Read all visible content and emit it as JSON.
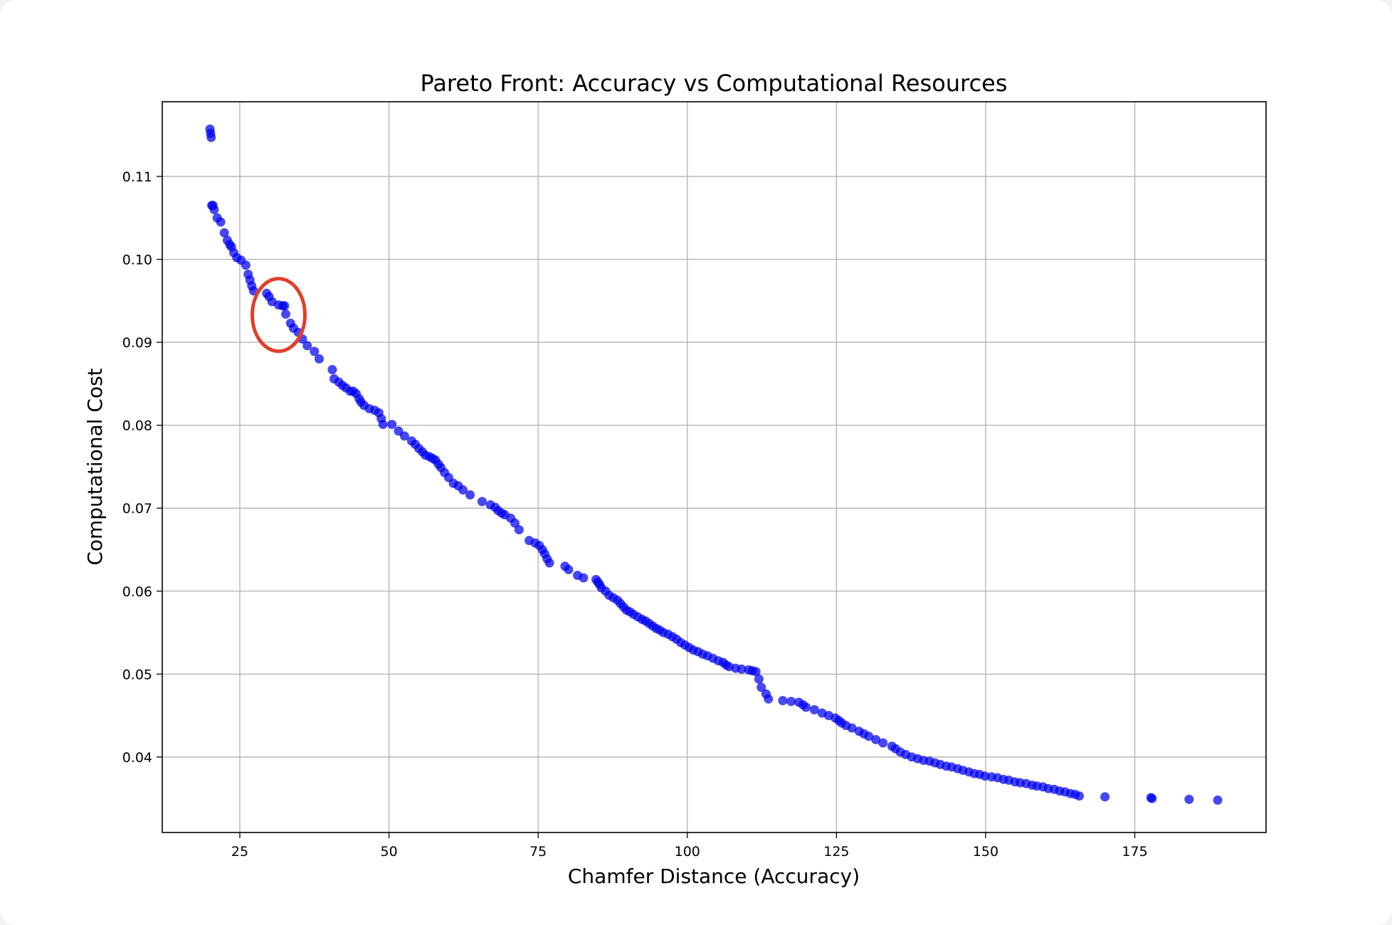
{
  "chart_data": {
    "type": "scatter",
    "title": "Pareto Front: Accuracy vs Computational Resources",
    "xlabel": "Chamfer Distance (Accuracy)",
    "ylabel": "Computational Cost",
    "xlim": [
      12,
      197
    ],
    "ylim": [
      0.0309,
      0.119
    ],
    "xticks": [
      25,
      50,
      75,
      100,
      125,
      150,
      175
    ],
    "yticks": [
      0.04,
      0.05,
      0.06,
      0.07,
      0.08,
      0.09,
      0.1,
      0.11
    ],
    "xtick_labels": [
      "25",
      "50",
      "75",
      "100",
      "125",
      "150",
      "175"
    ],
    "ytick_labels": [
      "0.04",
      "0.05",
      "0.06",
      "0.07",
      "0.08",
      "0.09",
      "0.10",
      "0.11"
    ],
    "grid": true,
    "marker_color": "#0000ee",
    "series": [
      {
        "x": [
          20.0,
          20.1,
          20.2,
          20.3,
          20.5,
          20.7,
          21.2,
          21.8,
          22.4,
          22.9,
          23.3,
          23.6,
          24.0,
          24.5,
          25.2,
          26.0,
          26.4,
          26.7,
          27.0,
          27.3,
          29.5,
          29.9,
          30.4,
          31.5,
          32.2,
          32.5,
          32.7,
          33.5,
          34.0,
          34.8,
          35.5,
          36.3,
          37.5,
          38.3,
          40.5,
          40.8,
          41.6,
          42.2,
          42.8,
          43.5,
          44.0,
          44.5,
          45.0,
          45.3,
          45.8,
          46.7,
          47.6,
          48.3,
          48.7,
          49.0,
          50.5,
          51.6,
          52.6,
          53.8,
          54.4,
          55.0,
          55.6,
          56.1,
          56.8,
          57.3,
          57.8,
          58.3,
          58.7,
          59.3,
          60.0,
          60.8,
          61.6,
          62.4,
          63.6,
          65.6,
          67.0,
          67.8,
          68.3,
          68.9,
          69.4,
          70.4,
          71.1,
          71.8,
          73.5,
          74.5,
          75.2,
          75.7,
          76.1,
          76.5,
          76.9,
          79.5,
          80.1,
          81.6,
          82.6,
          84.7,
          85.0,
          85.3,
          85.6,
          86.3,
          86.9,
          87.6,
          88.3,
          88.8,
          89.3,
          89.8,
          90.4,
          91.0,
          91.7,
          92.4,
          93.0,
          93.6,
          94.2,
          94.8,
          95.4,
          96.0,
          96.8,
          97.5,
          98.2,
          98.9,
          99.6,
          100.3,
          101.0,
          101.8,
          102.6,
          103.4,
          104.3,
          105.2,
          106.0,
          106.5,
          107.0,
          108.1,
          109.1,
          110.3,
          110.9,
          111.5,
          112.0,
          112.4,
          113.2,
          113.6,
          116.0,
          117.4,
          118.7,
          119.4,
          119.9,
          121.3,
          122.6,
          123.7,
          124.8,
          125.4,
          125.9,
          126.6,
          127.6,
          128.8,
          129.6,
          130.4,
          131.6,
          132.8,
          134.3,
          134.9,
          135.7,
          136.6,
          137.6,
          138.6,
          139.6,
          140.6,
          141.5,
          142.4,
          143.4,
          144.3,
          145.3,
          146.2,
          147.2,
          148.1,
          149.0,
          149.9,
          151.0,
          152.0,
          153.0,
          153.9,
          154.9,
          155.8,
          156.8,
          157.8,
          158.6,
          159.6,
          160.5,
          161.5,
          162.4,
          163.3,
          164.2,
          165.0,
          165.7,
          170.0,
          177.7,
          177.9,
          184.1,
          188.9
        ],
        "y": [
          0.1157,
          0.1152,
          0.1147,
          0.1065,
          0.1065,
          0.106,
          0.105,
          0.1045,
          0.1032,
          0.1023,
          0.1018,
          0.1015,
          0.1008,
          0.1002,
          0.0999,
          0.0993,
          0.0982,
          0.0975,
          0.0968,
          0.0962,
          0.0959,
          0.0955,
          0.0949,
          0.0945,
          0.0944,
          0.0944,
          0.0934,
          0.0923,
          0.0917,
          0.0912,
          0.0904,
          0.0896,
          0.0889,
          0.088,
          0.0867,
          0.0856,
          0.0852,
          0.0848,
          0.0845,
          0.0841,
          0.0841,
          0.0838,
          0.0832,
          0.0828,
          0.0824,
          0.082,
          0.0818,
          0.0815,
          0.0808,
          0.0801,
          0.0801,
          0.0793,
          0.0787,
          0.0781,
          0.0777,
          0.0772,
          0.0768,
          0.0764,
          0.0762,
          0.076,
          0.0758,
          0.0753,
          0.0749,
          0.0743,
          0.0737,
          0.073,
          0.0727,
          0.0722,
          0.0716,
          0.0708,
          0.0704,
          0.0701,
          0.0697,
          0.0694,
          0.0692,
          0.0688,
          0.0682,
          0.0674,
          0.0661,
          0.0658,
          0.0655,
          0.065,
          0.0645,
          0.0639,
          0.0634,
          0.063,
          0.0626,
          0.0619,
          0.0616,
          0.0614,
          0.0611,
          0.0608,
          0.0604,
          0.06,
          0.0595,
          0.0592,
          0.0589,
          0.0585,
          0.0581,
          0.0577,
          0.0575,
          0.0572,
          0.0569,
          0.0566,
          0.0564,
          0.0561,
          0.0558,
          0.0555,
          0.0553,
          0.055,
          0.0548,
          0.0545,
          0.0542,
          0.0538,
          0.0535,
          0.0532,
          0.0529,
          0.0527,
          0.0524,
          0.0522,
          0.0519,
          0.0516,
          0.0514,
          0.0511,
          0.0509,
          0.0507,
          0.0506,
          0.0505,
          0.0504,
          0.0503,
          0.0494,
          0.0484,
          0.0476,
          0.047,
          0.0468,
          0.0467,
          0.0466,
          0.0463,
          0.046,
          0.0457,
          0.0453,
          0.045,
          0.0447,
          0.0444,
          0.0441,
          0.0438,
          0.0435,
          0.0431,
          0.0428,
          0.0425,
          0.0421,
          0.0417,
          0.0413,
          0.041,
          0.0406,
          0.0403,
          0.04,
          0.0398,
          0.0396,
          0.0395,
          0.0393,
          0.0391,
          0.0389,
          0.0388,
          0.0386,
          0.0384,
          0.0382,
          0.038,
          0.0379,
          0.0377,
          0.0376,
          0.0375,
          0.0373,
          0.0372,
          0.037,
          0.0369,
          0.0368,
          0.0366,
          0.0365,
          0.0364,
          0.0362,
          0.0361,
          0.0359,
          0.0358,
          0.0356,
          0.0355,
          0.0353,
          0.0352,
          0.0351,
          0.035,
          0.0349,
          0.0348
        ]
      }
    ],
    "annotation": {
      "type": "ellipse",
      "color": "#e0402a",
      "x_center": 31.5,
      "y_center": 0.0933
    }
  }
}
